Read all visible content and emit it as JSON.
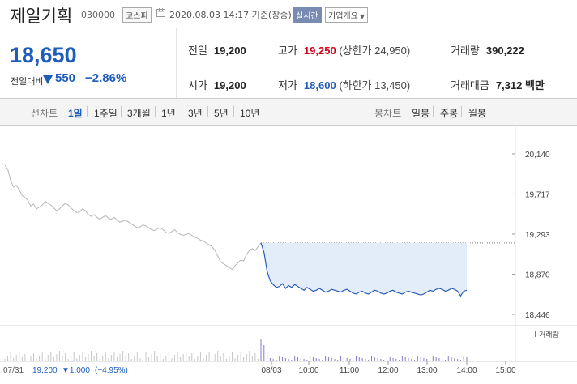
{
  "header": {
    "stock_name": "제일기획",
    "stock_code": "030000",
    "market": "코스피",
    "timestamp": "2020.08.03 14:17 기준(장중)",
    "realtime_label": "실시간",
    "company_info_label": "기업개요",
    "company_info_arrow": "▼"
  },
  "quote": {
    "price": "18,650",
    "prev_label": "전일대비",
    "change": "550",
    "change_pct": "−2.86%",
    "prev_close_label": "전일",
    "prev_close": "19,200",
    "high_label": "고가",
    "high": "19,250",
    "upper_limit": "(상한가 24,950)",
    "volume_label": "거래량",
    "volume": "390,222",
    "open_label": "시가",
    "open": "19,200",
    "low_label": "저가",
    "low": "18,600",
    "lower_limit": "(하한가 13,450)",
    "amount_label": "거래대금",
    "amount": "7,312",
    "amount_unit": "백만"
  },
  "periods": {
    "line_label": "선차트",
    "line_items": [
      "1일",
      "1주일",
      "3개월",
      "1년",
      "3년",
      "5년",
      "10년"
    ],
    "active": "1일",
    "candle_label": "봉차트",
    "candle_items": [
      "일봉",
      "주봉",
      "월봉"
    ]
  },
  "chart_data": {
    "type": "line",
    "y_ticks": [
      20140,
      19717,
      19293,
      18870,
      18446
    ],
    "y_tick_labels": [
      "20,140",
      "19,717",
      "19,293",
      "18,870",
      "18,446"
    ],
    "ylim": [
      18446,
      20140
    ],
    "prev_close": 19200,
    "volume_label": "거래량",
    "x_ticks": [
      "08/03",
      "10:00",
      "11:00",
      "12:00",
      "13:00",
      "14:00",
      "15:00"
    ],
    "prev_day": {
      "label": "07/31",
      "close_text": "19,200",
      "change_text": "▼1,000",
      "pct_text": "(−4,95%)"
    },
    "prev_day_series": [
      20020,
      19980,
      19860,
      19790,
      19810,
      19760,
      19700,
      19680,
      19650,
      19590,
      19610,
      19560,
      19580,
      19600,
      19640,
      19620,
      19600,
      19570,
      19540,
      19560,
      19590,
      19620,
      19600,
      19570,
      19540,
      19520,
      19530,
      19560,
      19540,
      19500,
      19480,
      19500,
      19470,
      19450,
      19470,
      19490,
      19460,
      19450,
      19470,
      19440,
      19420,
      19430,
      19440,
      19420,
      19400,
      19380,
      19360,
      19370,
      19390,
      19380,
      19360,
      19340,
      19330,
      19350,
      19360,
      19340,
      19310,
      19300,
      19320,
      19340,
      19310,
      19290,
      19280,
      19290,
      19300,
      19280,
      19260,
      19250,
      19230,
      19220,
      19200,
      19180,
      19160,
      19120,
      19060,
      19000,
      18980,
      18960,
      18940,
      18920,
      18960,
      18990,
      19020,
      19010,
      19080,
      19120,
      19140,
      19120,
      19160,
      19200
    ],
    "today_series": [
      19200,
      19100,
      18900,
      18800,
      18760,
      18730,
      18740,
      18770,
      18720,
      18750,
      18730,
      18760,
      18740,
      18720,
      18700,
      18730,
      18710,
      18690,
      18700,
      18720,
      18700,
      18680,
      18690,
      18710,
      18700,
      18690,
      18680,
      18700,
      18710,
      18690,
      18670,
      18660,
      18680,
      18690,
      18670,
      18660,
      18680,
      18700,
      18690,
      18670,
      18660,
      18670,
      18690,
      18700,
      18680,
      18670,
      18660,
      18680,
      18690,
      18680,
      18670,
      18660,
      18650,
      18660,
      18680,
      18700,
      18690,
      18710,
      18720,
      18710,
      18690,
      18700,
      18720,
      18710,
      18690,
      18640,
      18690,
      18700
    ]
  }
}
